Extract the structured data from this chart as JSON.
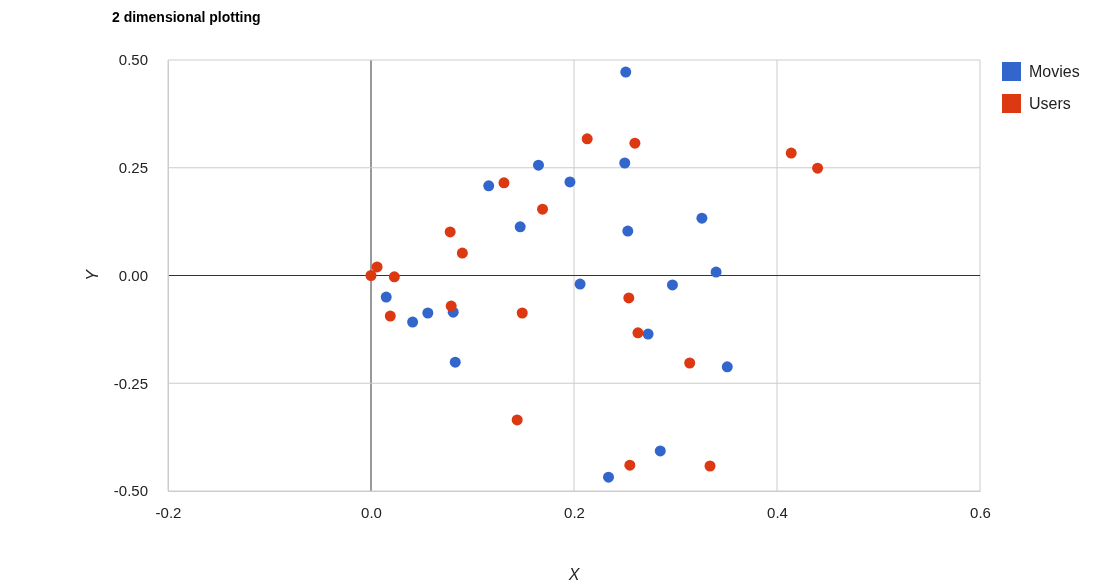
{
  "chart_data": {
    "type": "scatter",
    "title": "2 dimensional plotting",
    "xlabel": "X",
    "ylabel": "Y",
    "xlim": [
      -0.2,
      0.6
    ],
    "xticks": [
      -0.2,
      {
        "value": 0,
        "label": "0.0"
      },
      0.2,
      0.4,
      0.6
    ],
    "ylim": [
      -0.5,
      0.5
    ],
    "yticks": [
      {
        "value": -0.5,
        "label": "-0.50"
      },
      {
        "value": -0.25,
        "label": "-0.25"
      },
      {
        "value": 0,
        "label": "0.00"
      },
      {
        "value": 0.25,
        "label": "0.25"
      },
      {
        "value": 0.5,
        "label": "0.50"
      }
    ],
    "grid": true,
    "legend": "right",
    "marker": "circle",
    "series": [
      {
        "name": "Movies",
        "color": "#3366cc",
        "x": [
          0.251,
          0.165,
          0.25,
          0.116,
          0.196,
          0.147,
          0.253,
          0.326,
          0.34,
          0.206,
          0.297,
          0.015,
          0.056,
          0.081,
          0.041,
          0.273,
          0.351,
          0.083,
          0.285,
          0.234
        ],
        "values": [
          0.472,
          0.256,
          0.261,
          0.208,
          0.217,
          0.113,
          0.103,
          0.133,
          0.008,
          -0.02,
          -0.022,
          -0.05,
          -0.087,
          -0.085,
          -0.108,
          -0.136,
          -0.212,
          -0.201,
          -0.407,
          -0.468
        ]
      },
      {
        "name": "Users",
        "color": "#dc3912",
        "x": [
          0,
          0.006,
          0.023,
          0.019,
          0.078,
          0.09,
          0.079,
          0.131,
          0.169,
          0.149,
          0.144,
          0.213,
          0.26,
          0.414,
          0.44,
          0.254,
          0.263,
          0.314,
          0.255,
          0.334
        ],
        "values": [
          0,
          0.02,
          -0.003,
          -0.094,
          0.101,
          0.052,
          -0.071,
          0.215,
          0.154,
          -0.087,
          -0.335,
          0.317,
          0.307,
          0.284,
          0.249,
          -0.052,
          -0.133,
          -0.203,
          -0.44,
          -0.442
        ]
      }
    ]
  }
}
